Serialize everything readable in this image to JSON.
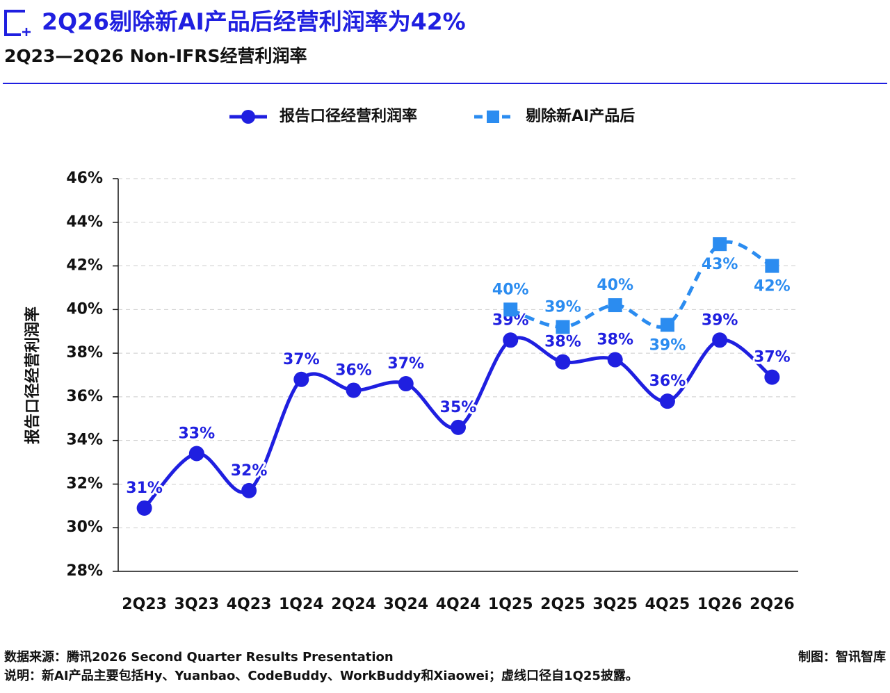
{
  "chart_data": {
    "type": "line",
    "title": "2Q26剔除新AI产品后经营利润率为42%",
    "subtitle": "2Q23—2Q26 Non-IFRS经营利润率",
    "y_label": "报告口径经营利润率",
    "source": "数据来源：腾讯2026 Second Quarter Results Presentation",
    "note": "说明：新AI产品主要包括Hy、Yuanbao、CodeBuddy、WorkBuddy和Xiaowei；虚线口径自1Q25披露。",
    "credit": "制图：智讯智库",
    "categories": [
      "2Q23",
      "3Q23",
      "4Q23",
      "1Q24",
      "2Q24",
      "3Q24",
      "4Q24",
      "1Q25",
      "2Q25",
      "3Q25",
      "4Q25",
      "1Q26",
      "2Q26"
    ],
    "series": [
      {
        "name": "报告口径经营利润率",
        "color": "#1f1fe0",
        "marker": "circle",
        "dashed": false,
        "values": [
          30.9,
          33.4,
          31.7,
          36.8,
          36.3,
          36.6,
          34.6,
          38.6,
          37.6,
          37.7,
          35.8,
          38.6,
          36.9
        ],
        "value_labels": [
          "31%",
          "33%",
          "32%",
          "37%",
          "36%",
          "37%",
          "35%",
          "39%",
          "38%",
          "38%",
          "36%",
          "39%",
          "37%"
        ]
      },
      {
        "name": "剔除新AI产品后",
        "color": "#2b8cf0",
        "marker": "square",
        "dashed": true,
        "values": [
          null,
          null,
          null,
          null,
          null,
          null,
          null,
          40.0,
          39.2,
          40.2,
          39.3,
          43.0,
          42.0
        ],
        "value_labels": [
          null,
          null,
          null,
          null,
          null,
          null,
          null,
          "40%",
          "39%",
          "40%",
          "39%",
          "43%",
          "42%"
        ]
      }
    ],
    "ylim": [
      28,
      46
    ],
    "yticks": [
      {
        "value": 28,
        "label": "28%"
      },
      {
        "value": 30,
        "label": "30%"
      },
      {
        "value": 32,
        "label": "32%"
      },
      {
        "value": 34,
        "label": "34%"
      },
      {
        "value": 36,
        "label": "36%"
      },
      {
        "value": 38,
        "label": "38%"
      },
      {
        "value": 40,
        "label": "40%"
      },
      {
        "value": 42,
        "label": "42%"
      },
      {
        "value": 44,
        "label": "44%"
      },
      {
        "value": 46,
        "label": "46%"
      }
    ],
    "grid": true,
    "legend": "top"
  }
}
